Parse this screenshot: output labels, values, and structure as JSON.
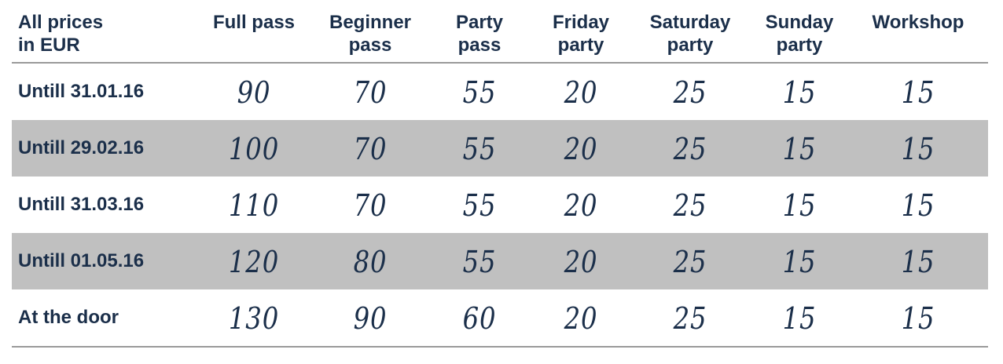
{
  "table": {
    "corner_header": [
      "All prices",
      "in EUR"
    ],
    "columns": [
      [
        "Full pass"
      ],
      [
        "Beginner",
        "pass"
      ],
      [
        "Party",
        "pass"
      ],
      [
        "Friday",
        "party"
      ],
      [
        "Saturday",
        "party"
      ],
      [
        "Sunday",
        "party"
      ],
      [
        "Workshop"
      ]
    ],
    "rows": [
      {
        "label": "Untill 31.01.16",
        "values": [
          "90",
          "70",
          "55",
          "20",
          "25",
          "15",
          "15"
        ]
      },
      {
        "label": "Untill 29.02.16",
        "values": [
          "100",
          "70",
          "55",
          "20",
          "25",
          "15",
          "15"
        ]
      },
      {
        "label": "Untill 31.03.16",
        "values": [
          "110",
          "70",
          "55",
          "20",
          "25",
          "15",
          "15"
        ]
      },
      {
        "label": "Untill 01.05.16",
        "values": [
          "120",
          "80",
          "55",
          "20",
          "25",
          "15",
          "15"
        ]
      },
      {
        "label": "At the door",
        "values": [
          "130",
          "90",
          "60",
          "20",
          "25",
          "15",
          "15"
        ]
      }
    ]
  },
  "colors": {
    "text": "#1b2f4a",
    "shaded_row": "#c0c0c0",
    "rule": "#9a9a9a"
  }
}
